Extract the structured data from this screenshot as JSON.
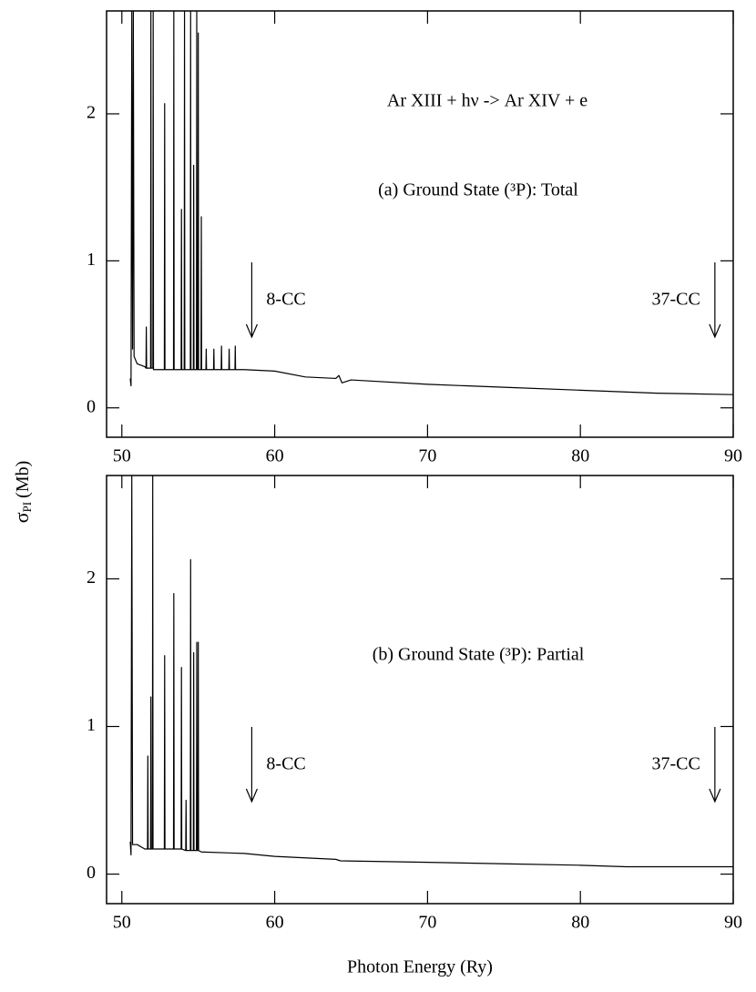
{
  "chart_data": [
    {
      "type": "line",
      "title": "Ar XIII + hν -> Ar XIV + e",
      "subtitle": "(a) Ground State (³P): Total",
      "color": "#000000",
      "x": [
        50.55,
        50.6,
        50.65,
        50.7,
        50.75,
        50.8,
        51.0,
        51.5,
        51.58,
        51.6,
        51.62,
        51.88,
        51.9,
        51.92,
        52.03,
        52.05,
        52.07,
        52.78,
        52.8,
        52.82,
        53.38,
        53.4,
        53.42,
        53.88,
        53.9,
        53.92,
        54.08,
        54.1,
        54.12,
        54.48,
        54.5,
        54.52,
        54.68,
        54.7,
        54.72,
        54.88,
        54.9,
        54.92,
        54.98,
        55.0,
        55.02,
        55.18,
        55.2,
        55.22,
        55.5,
        55.52,
        55.54,
        56.0,
        56.02,
        56.04,
        56.5,
        56.52,
        56.54,
        57.0,
        57.02,
        57.04,
        57.4,
        57.42,
        57.44,
        58,
        60,
        62,
        64,
        64.2,
        64.4,
        65,
        70,
        75,
        80,
        85,
        90
      ],
      "values": [
        0.2,
        0.15,
        2.7,
        0.4,
        2.7,
        0.35,
        0.3,
        0.28,
        0.27,
        0.55,
        0.27,
        0.27,
        2.7,
        0.27,
        0.27,
        2.7,
        0.26,
        0.26,
        2.07,
        0.26,
        0.26,
        2.7,
        0.26,
        0.26,
        1.35,
        0.26,
        0.26,
        2.7,
        0.26,
        0.26,
        2.7,
        0.26,
        0.26,
        1.65,
        0.26,
        0.26,
        2.7,
        0.26,
        0.26,
        2.55,
        0.26,
        0.26,
        1.3,
        0.26,
        0.26,
        0.4,
        0.26,
        0.26,
        0.4,
        0.26,
        0.26,
        0.42,
        0.26,
        0.26,
        0.4,
        0.26,
        0.26,
        0.42,
        0.26,
        0.26,
        0.25,
        0.21,
        0.2,
        0.22,
        0.17,
        0.19,
        0.16,
        0.14,
        0.12,
        0.1,
        0.09
      ],
      "xlim": [
        49,
        90
      ],
      "ylim": [
        -0.2,
        2.7
      ],
      "xticks": [
        50,
        60,
        70,
        80,
        90
      ],
      "yticks": [
        0,
        1,
        2
      ],
      "markers": [
        {
          "label": "8-CC",
          "x": 58.5
        },
        {
          "label": "37-CC",
          "x": 88.8
        }
      ],
      "ylabel": {
        "symbol": "σ",
        "subscript": "PI",
        "unit": "(Mb)"
      }
    },
    {
      "type": "line",
      "subtitle": "(b) Ground State (³P): Partial",
      "color": "#000000",
      "x": [
        50.55,
        50.6,
        50.65,
        50.7,
        51.0,
        51.5,
        51.68,
        51.7,
        51.72,
        51.88,
        51.9,
        51.92,
        52.0,
        52.02,
        52.04,
        52.5,
        52.78,
        52.8,
        52.82,
        53.38,
        53.4,
        53.42,
        53.88,
        53.9,
        53.92,
        54.18,
        54.2,
        54.22,
        54.48,
        54.5,
        54.52,
        54.68,
        54.7,
        54.72,
        54.88,
        54.9,
        54.92,
        54.98,
        55.0,
        55.02,
        55.2,
        58,
        60,
        64,
        64.3,
        70,
        75,
        80,
        83,
        90
      ],
      "values": [
        0.22,
        0.13,
        2.7,
        0.2,
        0.2,
        0.17,
        0.17,
        0.8,
        0.17,
        0.17,
        1.2,
        0.17,
        0.17,
        2.7,
        0.17,
        0.17,
        0.17,
        1.48,
        0.17,
        0.17,
        1.9,
        0.17,
        0.17,
        1.4,
        0.17,
        0.16,
        0.5,
        0.16,
        0.16,
        2.13,
        0.16,
        0.16,
        1.5,
        0.16,
        0.16,
        1.57,
        0.16,
        0.16,
        1.57,
        0.16,
        0.15,
        0.14,
        0.12,
        0.1,
        0.09,
        0.08,
        0.07,
        0.06,
        0.05,
        0.05
      ],
      "xlim": [
        49,
        90
      ],
      "ylim": [
        -0.2,
        2.7
      ],
      "xticks": [
        50,
        60,
        70,
        80,
        90
      ],
      "yticks": [
        0,
        1,
        2
      ],
      "markers": [
        {
          "label": "8-CC",
          "x": 58.5
        },
        {
          "label": "37-CC",
          "x": 88.8
        }
      ],
      "xlabel": "Photon Energy (Ry)"
    }
  ]
}
